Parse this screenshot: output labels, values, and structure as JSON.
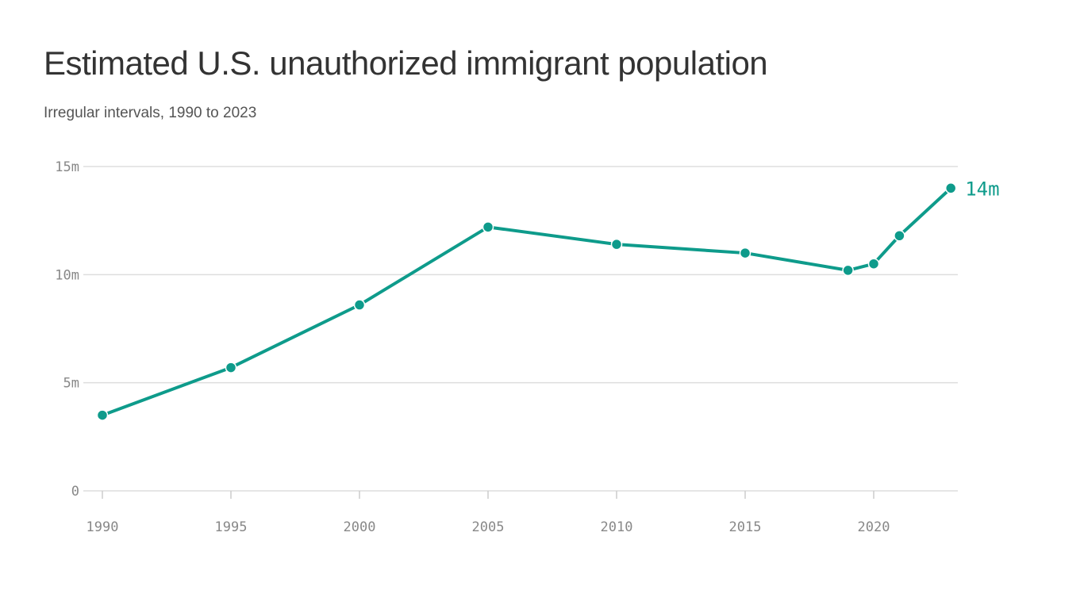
{
  "chart_data": {
    "type": "line",
    "title": "Estimated U.S. unauthorized immigrant population",
    "subtitle": "Irregular intervals, 1990 to 2023",
    "xlabel": "",
    "ylabel": "",
    "x": [
      1990,
      1995,
      2000,
      2005,
      2010,
      2015,
      2019,
      2020,
      2021,
      2023
    ],
    "series": [
      {
        "values": [
          3.5,
          5.7,
          8.6,
          12.2,
          11.4,
          11.0,
          10.2,
          10.5,
          11.8,
          14.0
        ]
      }
    ],
    "unit": "millions",
    "xlim": [
      1990,
      2023
    ],
    "ylim": [
      0,
      15
    ],
    "x_ticks": [
      1990,
      1995,
      2000,
      2005,
      2010,
      2015,
      2020
    ],
    "x_tick_labels": [
      "1990",
      "1995",
      "2000",
      "2005",
      "2010",
      "2015",
      "2020"
    ],
    "y_ticks": [
      0,
      5,
      10,
      15
    ],
    "y_tick_labels": [
      "0",
      "5m",
      "10m",
      "15m"
    ],
    "end_label": "14m",
    "grid": "horizontal",
    "legend": "none",
    "colors": {
      "line": "#0e9b8b",
      "grid": "#dddddd",
      "text": "#888888"
    }
  }
}
